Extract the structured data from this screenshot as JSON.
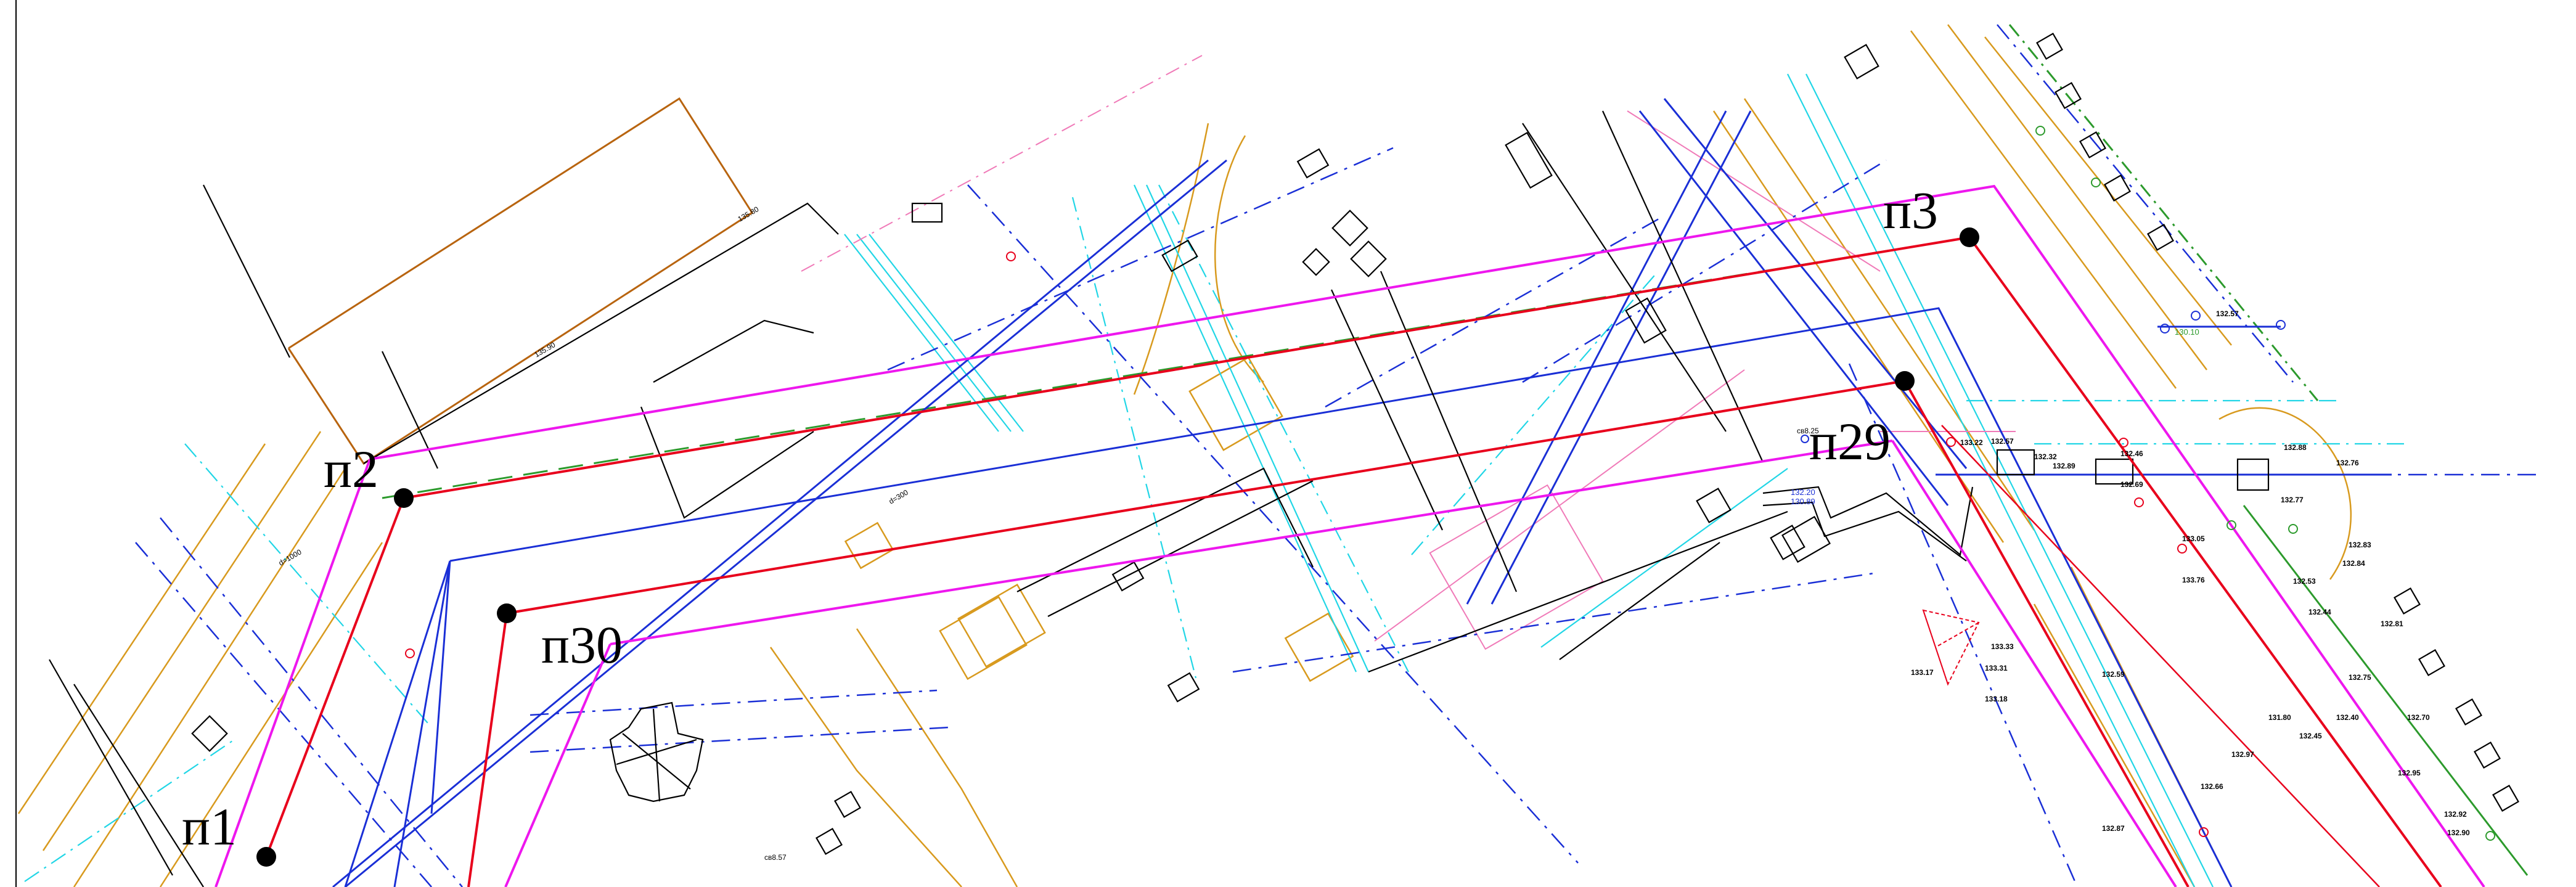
{
  "points": [
    {
      "id": "p1",
      "label": "п1"
    },
    {
      "id": "p2",
      "label": "п2"
    },
    {
      "id": "p3",
      "label": "п3"
    },
    {
      "id": "p29",
      "label": "п29"
    },
    {
      "id": "p30",
      "label": "п30"
    }
  ],
  "annotations": {
    "d1000": "d=1000",
    "d300": "d=300",
    "s1": "135.80",
    "s2": "135.90",
    "s3": "133.22",
    "s4": "132.57",
    "s5": "132.32",
    "s6": "132.89",
    "s7": "132.46",
    "s8": "132.69",
    "s9": "133.05",
    "s10": "133.17",
    "s11": "133.33",
    "s12": "133.31",
    "s13": "133.18",
    "s14": "132.57",
    "s15": "132.77",
    "s16": "132.76",
    "s17": "132.53",
    "s18": "132.44",
    "s19": "132.81",
    "s20": "132.75",
    "s21": "132.83",
    "s22": "132.88",
    "s23": "132.20",
    "s24": "130.89",
    "s25": "130.10",
    "s26": "cв8.25",
    "s27": "cв8.57",
    "s28": "132.45",
    "s29": "132.66",
    "s30": "132.97",
    "s31": "132.59",
    "s32": "131.80",
    "s33": "132.40",
    "s34": "132.92",
    "s35": "133.76",
    "s36": "132.90",
    "s37": "132.70",
    "s38": "132.84",
    "s39": "132.95",
    "s40": "132.87"
  },
  "colors": {
    "black": "#000000",
    "red": "#e8001c",
    "blue": "#1a2fd6",
    "magenta": "#ee17ee",
    "orange": "#d89a1e",
    "brown": "#b8640f",
    "cyan": "#21d6e6",
    "green": "#2c9a2c",
    "pink": "#f07ab8",
    "yellow": "#e8e32a"
  }
}
